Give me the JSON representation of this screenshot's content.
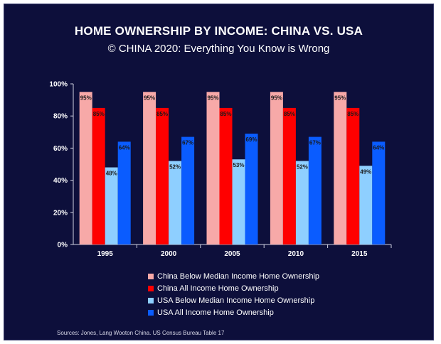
{
  "chart_data": {
    "type": "bar",
    "title": "HOME OWNERSHIP BY INCOME: CHINA VS. USA",
    "subtitle": "© CHINA 2020: Everything You Know is Wrong",
    "categories": [
      "1995",
      "2000",
      "2005",
      "2010",
      "2015"
    ],
    "series": [
      {
        "name": "China Below Median Income Home Ownership",
        "color": "#f7a9a8",
        "values": [
          95,
          95,
          95,
          95,
          95
        ],
        "labels": [
          "95%",
          "95%",
          "95%",
          "95%",
          "95%"
        ]
      },
      {
        "name": "China All Income Home Ownership",
        "color": "#ff0000",
        "values": [
          85,
          85,
          85,
          85,
          85
        ],
        "labels": [
          "85%",
          "85%",
          "85%",
          "85%",
          "85%"
        ]
      },
      {
        "name": "USA Below Median Income Home Ownership",
        "color": "#8ecfff",
        "values": [
          48,
          52,
          53,
          52,
          49
        ],
        "labels": [
          "48%",
          "52%",
          "53%",
          "52%",
          "49%"
        ]
      },
      {
        "name": "USA All Income Home Ownership",
        "color": "#0a5cff",
        "values": [
          64,
          67,
          69,
          67,
          64
        ],
        "labels": [
          "64%",
          "67%",
          "69%",
          "67%",
          "64%"
        ]
      }
    ],
    "yticks": [
      "0%",
      "20%",
      "40%",
      "60%",
      "80%",
      "100%"
    ],
    "ylim": [
      0,
      100
    ],
    "grid": false,
    "legend_position": "bottom"
  },
  "source": "Sources:  Jones, Lang Wooton China. US Census Bureau Table 17",
  "colors": {
    "background": "#0d0f3b",
    "text": "#ffffff"
  }
}
